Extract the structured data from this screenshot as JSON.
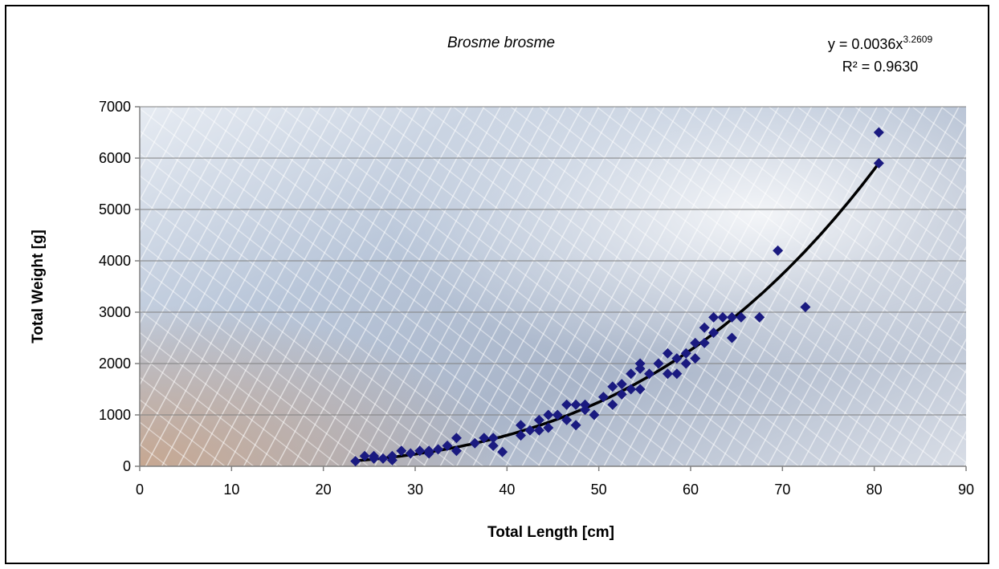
{
  "chart_data": {
    "type": "scatter",
    "title": "Brosme brosme",
    "xlabel": "Total Length [cm]",
    "ylabel": "Total Weight [g]",
    "xlim": [
      0,
      90
    ],
    "ylim": [
      0,
      7000
    ],
    "x_ticks": [
      0,
      10,
      20,
      30,
      40,
      50,
      60,
      70,
      80,
      90
    ],
    "y_ticks": [
      0,
      1000,
      2000,
      3000,
      4000,
      5000,
      6000,
      7000
    ],
    "grid": "horizontal",
    "marker": "diamond",
    "marker_color": "#1a1a80",
    "trendline": {
      "type": "power",
      "a": 0.0036,
      "b": 3.2609,
      "equation_prefix": "y = 0.0036x",
      "equation_exponent": "3.2609",
      "r_squared": "R² = 0.9630",
      "color": "#000000"
    },
    "series": [
      {
        "points": [
          [
            23.5,
            100
          ],
          [
            24.5,
            200
          ],
          [
            25.5,
            150
          ],
          [
            25.5,
            200
          ],
          [
            26.5,
            150
          ],
          [
            27.5,
            120
          ],
          [
            27.5,
            200
          ],
          [
            28.5,
            300
          ],
          [
            29.5,
            250
          ],
          [
            30.5,
            300
          ],
          [
            31.5,
            250
          ],
          [
            31.5,
            300
          ],
          [
            32.5,
            330
          ],
          [
            33.5,
            400
          ],
          [
            34.5,
            300
          ],
          [
            34.5,
            550
          ],
          [
            36.5,
            450
          ],
          [
            37.5,
            550
          ],
          [
            38.5,
            400
          ],
          [
            38.5,
            550
          ],
          [
            39.5,
            280
          ],
          [
            41.5,
            600
          ],
          [
            41.5,
            800
          ],
          [
            42.5,
            700
          ],
          [
            43.5,
            700
          ],
          [
            43.5,
            900
          ],
          [
            44.5,
            750
          ],
          [
            44.5,
            1000
          ],
          [
            45.5,
            1000
          ],
          [
            46.5,
            900
          ],
          [
            46.5,
            1200
          ],
          [
            47.5,
            800
          ],
          [
            47.5,
            1200
          ],
          [
            48.5,
            1100
          ],
          [
            48.5,
            1200
          ],
          [
            49.5,
            1000
          ],
          [
            50.5,
            1350
          ],
          [
            51.5,
            1200
          ],
          [
            51.5,
            1550
          ],
          [
            52.5,
            1400
          ],
          [
            52.5,
            1600
          ],
          [
            53.5,
            1500
          ],
          [
            53.5,
            1800
          ],
          [
            54.5,
            1500
          ],
          [
            54.5,
            1900
          ],
          [
            54.5,
            2000
          ],
          [
            55.5,
            1800
          ],
          [
            56.5,
            2000
          ],
          [
            57.5,
            1800
          ],
          [
            57.5,
            2200
          ],
          [
            58.5,
            1800
          ],
          [
            58.5,
            2100
          ],
          [
            59.5,
            2000
          ],
          [
            59.5,
            2200
          ],
          [
            60.5,
            2100
          ],
          [
            60.5,
            2400
          ],
          [
            61.5,
            2400
          ],
          [
            61.5,
            2700
          ],
          [
            62.5,
            2600
          ],
          [
            62.5,
            2900
          ],
          [
            63.5,
            2900
          ],
          [
            64.5,
            2500
          ],
          [
            64.5,
            2900
          ],
          [
            65.5,
            2900
          ],
          [
            67.5,
            2900
          ],
          [
            69.5,
            4200
          ],
          [
            72.5,
            3100
          ],
          [
            80.5,
            5900
          ],
          [
            80.5,
            6500
          ]
        ]
      }
    ]
  }
}
